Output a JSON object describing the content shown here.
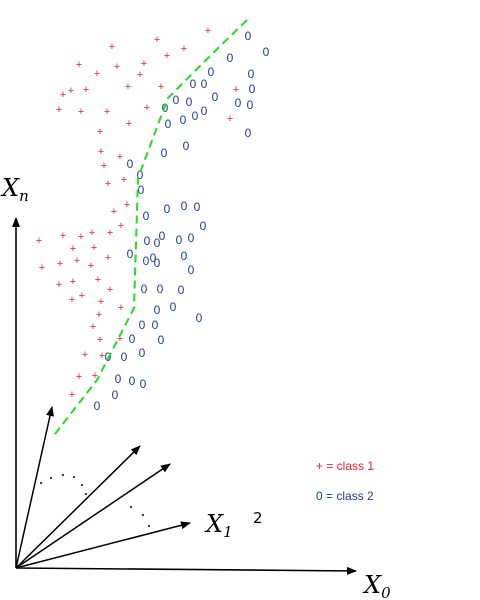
{
  "axes": {
    "xn_main": "X",
    "xn_sub": "n",
    "x0_main": "X",
    "x0_sub": "0",
    "x1_main": "X",
    "x1_sub": "1",
    "extra_label": "2"
  },
  "legend": {
    "class1": "+ = class 1",
    "class2": "0 = class 2"
  },
  "colors": {
    "class1": "#e8232a",
    "class2": "#1f3d8c",
    "boundary": "#22dd22",
    "axis": "#000000"
  },
  "markers": {
    "class1": "+",
    "class2": "0"
  },
  "chart_data": {
    "type": "scatter",
    "series": [
      {
        "name": "class 1",
        "marker": "+",
        "points": [
          [
            112,
            47
          ],
          [
            157,
            40
          ],
          [
            184,
            49
          ],
          [
            208,
            31
          ],
          [
            79,
            65
          ],
          [
            97,
            74
          ],
          [
            117,
            67
          ],
          [
            144,
            64
          ],
          [
            167,
            56
          ],
          [
            63,
            95
          ],
          [
            71,
            91
          ],
          [
            86,
            90
          ],
          [
            128,
            87
          ],
          [
            140,
            75
          ],
          [
            161,
            87
          ],
          [
            59,
            110
          ],
          [
            81,
            112
          ],
          [
            107,
            112
          ],
          [
            129,
            124
          ],
          [
            147,
            108
          ],
          [
            100,
            132
          ],
          [
            101,
            152
          ],
          [
            104,
            166
          ],
          [
            120,
            157
          ],
          [
            108,
            184
          ],
          [
            124,
            180
          ],
          [
            127,
            205
          ],
          [
            114,
            212
          ],
          [
            121,
            226
          ],
          [
            39,
            241
          ],
          [
            63,
            236
          ],
          [
            81,
            237
          ],
          [
            92,
            233
          ],
          [
            110,
            233
          ],
          [
            73,
            249
          ],
          [
            94,
            248
          ],
          [
            60,
            264
          ],
          [
            77,
            261
          ],
          [
            108,
            258
          ],
          [
            42,
            268
          ],
          [
            91,
            266
          ],
          [
            73,
            282
          ],
          [
            98,
            280
          ],
          [
            59,
            285
          ],
          [
            110,
            290
          ],
          [
            82,
            296
          ],
          [
            101,
            302
          ],
          [
            72,
            300
          ],
          [
            121,
            308
          ],
          [
            99,
            315
          ],
          [
            93,
            327
          ],
          [
            100,
            340
          ],
          [
            120,
            339
          ],
          [
            85,
            355
          ],
          [
            102,
            356
          ],
          [
            79,
            377
          ],
          [
            95,
            376
          ],
          [
            72,
            395
          ],
          [
            236,
            90
          ],
          [
            230,
            119
          ]
        ]
      },
      {
        "name": "class 2",
        "marker": "0",
        "points": [
          [
            248,
            36
          ],
          [
            266,
            52
          ],
          [
            230,
            58
          ],
          [
            211,
            72
          ],
          [
            251,
            74
          ],
          [
            193,
            84
          ],
          [
            204,
            84
          ],
          [
            215,
            97
          ],
          [
            252,
            89
          ],
          [
            176,
            100
          ],
          [
            189,
            102
          ],
          [
            238,
            103
          ],
          [
            165,
            108
          ],
          [
            195,
            116
          ],
          [
            204,
            111
          ],
          [
            250,
            105
          ],
          [
            168,
            124
          ],
          [
            183,
            120
          ],
          [
            186,
            146
          ],
          [
            164,
            153
          ],
          [
            248,
            133
          ],
          [
            130,
            164
          ],
          [
            140,
            175
          ],
          [
            141,
            190
          ],
          [
            184,
            206
          ],
          [
            167,
            209
          ],
          [
            197,
            207
          ],
          [
            146,
            216
          ],
          [
            203,
            226
          ],
          [
            162,
            236
          ],
          [
            179,
            240
          ],
          [
            147,
            241
          ],
          [
            191,
            238
          ],
          [
            157,
            243
          ],
          [
            153,
            258
          ],
          [
            184,
            256
          ],
          [
            130,
            254
          ],
          [
            146,
            261
          ],
          [
            157,
            263
          ],
          [
            191,
            270
          ],
          [
            144,
            289
          ],
          [
            160,
            289
          ],
          [
            181,
            290
          ],
          [
            173,
            307
          ],
          [
            157,
            310
          ],
          [
            142,
            325
          ],
          [
            155,
            325
          ],
          [
            199,
            318
          ],
          [
            132,
            339
          ],
          [
            161,
            340
          ],
          [
            108,
            357
          ],
          [
            124,
            357
          ],
          [
            142,
            353
          ],
          [
            118,
            379
          ],
          [
            132,
            381
          ],
          [
            143,
            384
          ],
          [
            115,
            395
          ],
          [
            97,
            406
          ]
        ]
      }
    ],
    "decision_boundary": [
      [
        247,
        20
      ],
      [
        210,
        56
      ],
      [
        168,
        98
      ],
      [
        138,
        178
      ],
      [
        134,
        308
      ],
      [
        97,
        380
      ],
      [
        55,
        434
      ]
    ]
  }
}
